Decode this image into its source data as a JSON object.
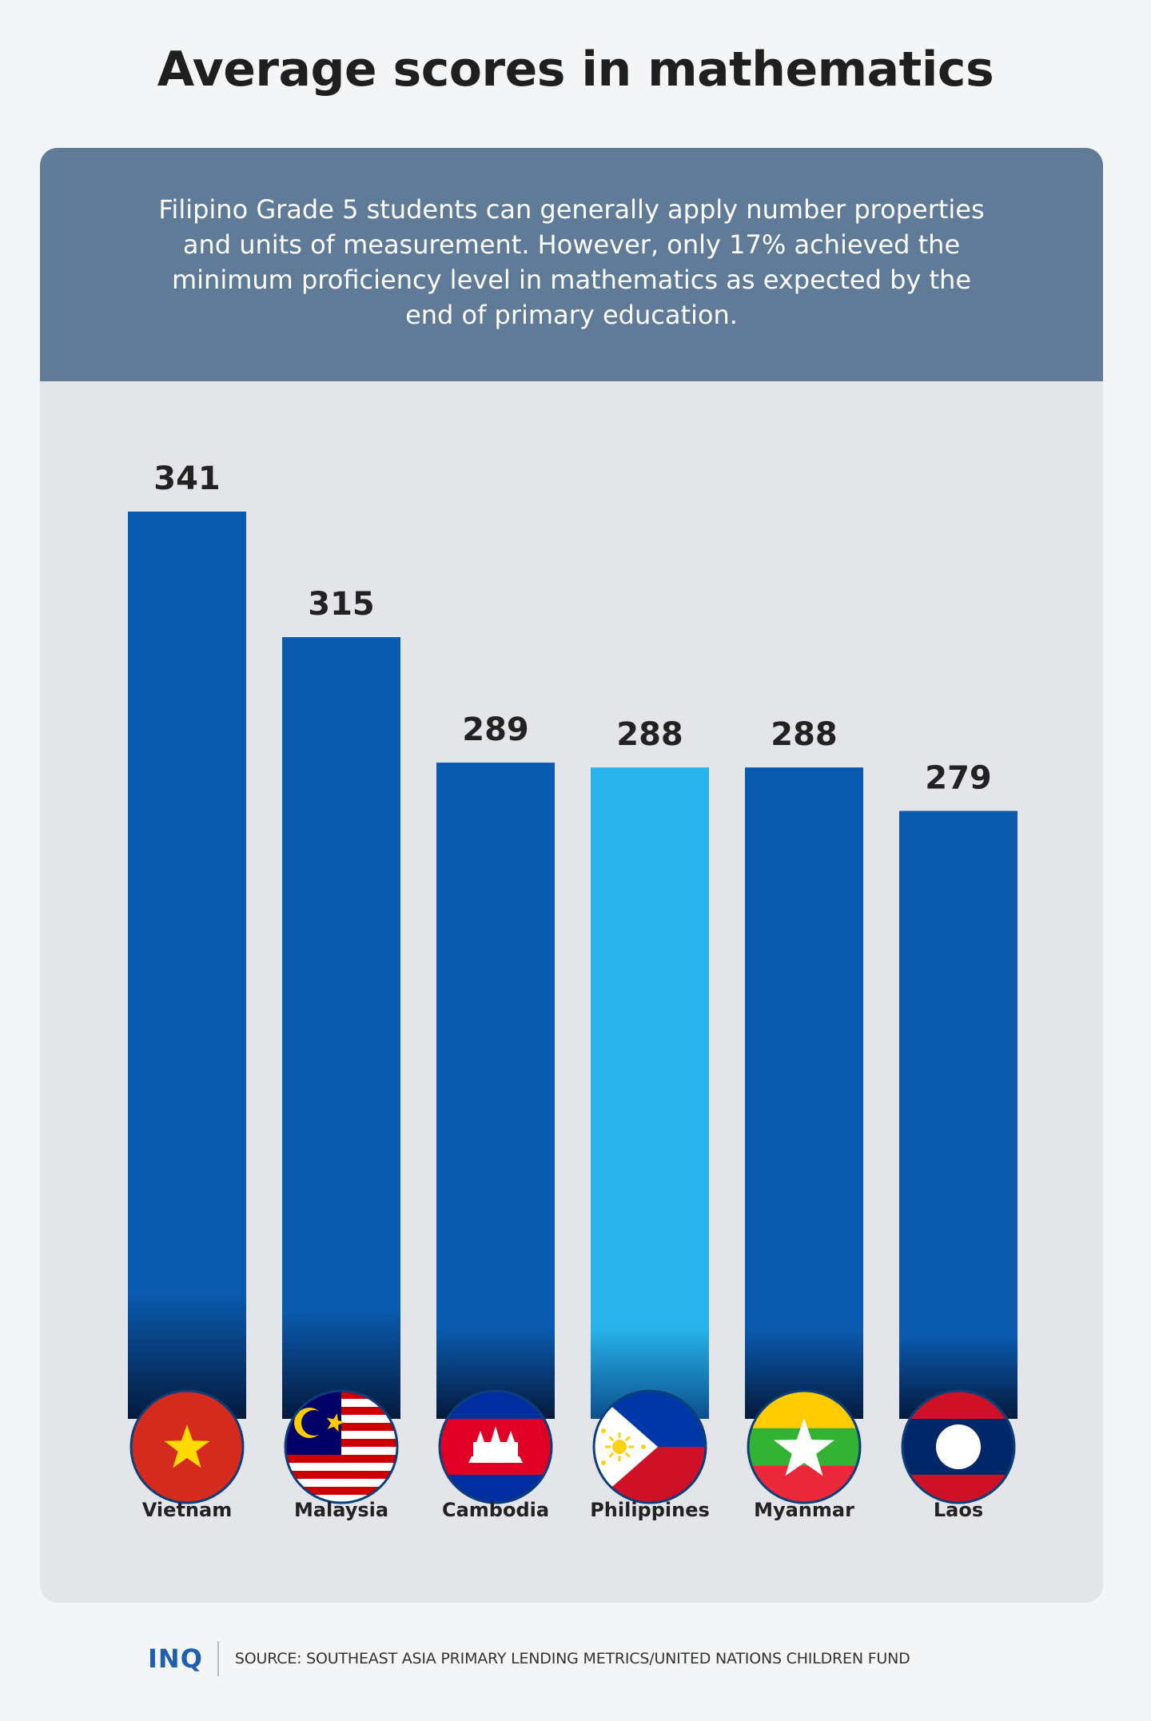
{
  "title": "Average scores in mathematics",
  "subtitle": "Filipino Grade 5 students can generally apply number properties and units of measurement. However, only 17% achieved the minimum proficiency level in mathematics as expected by the end of primary education.",
  "footer": {
    "logo": "INQ",
    "source": "SOURCE: SOUTHEAST ASIA PRIMARY LENDING METRICS/UNITED NATIONS CHILDREN FUND"
  },
  "colors": {
    "bar": "#0a5bb0",
    "bar_highlight": "#28b4ea",
    "banner": "#5f7b98",
    "card": "#e3e5e9"
  },
  "chart_data": {
    "type": "bar",
    "title": "Average scores in mathematics",
    "categories": [
      "Vietnam",
      "Malaysia",
      "Cambodia",
      "Philippines",
      "Myanmar",
      "Laos"
    ],
    "values": [
      341,
      315,
      289,
      288,
      288,
      279
    ],
    "highlight": "Philippines",
    "flags": [
      "vietnam-flag-icon",
      "malaysia-flag-icon",
      "cambodia-flag-icon",
      "philippines-flag-icon",
      "myanmar-flag-icon",
      "laos-flag-icon"
    ],
    "xlabel": "",
    "ylabel": "",
    "grid": false,
    "legend": "none"
  }
}
